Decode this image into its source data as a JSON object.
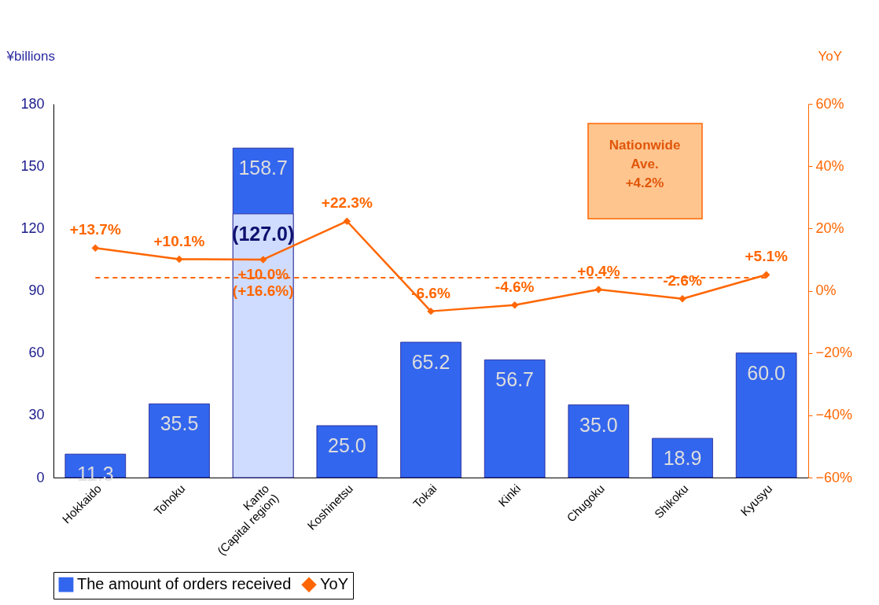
{
  "chart_data": {
    "type": "bar",
    "ylabel": "¥billions",
    "y2label": "YoY",
    "categories": [
      "Hokkaido",
      "Tohoku",
      "Kanto\n(Capital region)",
      "Koshinetsu",
      "Tokai",
      "Kinki",
      "Chugoku",
      "Shikoku",
      "Kyusyu"
    ],
    "series": [
      {
        "name": "The amount of orders received",
        "color": "#3366ee",
        "values": [
          11.3,
          35.5,
          158.7,
          25.0,
          65.2,
          56.7,
          35.0,
          18.9,
          60.0
        ],
        "value_labels": [
          "11.3",
          "35.5",
          "158.7",
          "25.0",
          "65.2",
          "56.7",
          "35.0",
          "18.9",
          "60.0"
        ]
      },
      {
        "color": "#cfdcff",
        "values": [
          null,
          null,
          127.0,
          null,
          null,
          null,
          null,
          null,
          null
        ],
        "value_labels": [
          null,
          null,
          "(127.0)",
          null,
          null,
          null,
          null,
          null,
          null
        ]
      },
      {
        "name": "YoY",
        "type": "line",
        "axis": "y2",
        "color": "#ff6600",
        "marker": "diamond",
        "values": [
          13.7,
          10.1,
          10.0,
          22.3,
          -6.6,
          -4.6,
          0.4,
          -2.6,
          5.1
        ],
        "value_labels": [
          "+13.7%",
          "+10.1%",
          "+10.0%\n(+16.6%)",
          "+22.3%",
          "-6.6%",
          "-4.6%",
          "+0.4%",
          "-2.6%",
          "+5.1%"
        ]
      }
    ],
    "ylim": [
      0,
      180
    ],
    "yticks": [
      0,
      30,
      60,
      90,
      120,
      150,
      180
    ],
    "y2lim": [
      -60,
      60
    ],
    "y2ticks": [
      {
        "value": -60,
        "label": "−60%"
      },
      {
        "value": -40,
        "label": "−40%"
      },
      {
        "value": -20,
        "label": "−20%"
      },
      {
        "value": 0,
        "label": "0%"
      },
      {
        "value": 20,
        "label": "20%"
      },
      {
        "value": 40,
        "label": "40%"
      },
      {
        "value": 60,
        "label": "60%"
      }
    ],
    "ref_lines": [
      {
        "axis": "y2",
        "value": 4.2,
        "label": "Nationwide Ave. +4.2%",
        "color": "#ff6600",
        "line_style": "dashed"
      }
    ],
    "grid": false,
    "legend": "bottom"
  }
}
